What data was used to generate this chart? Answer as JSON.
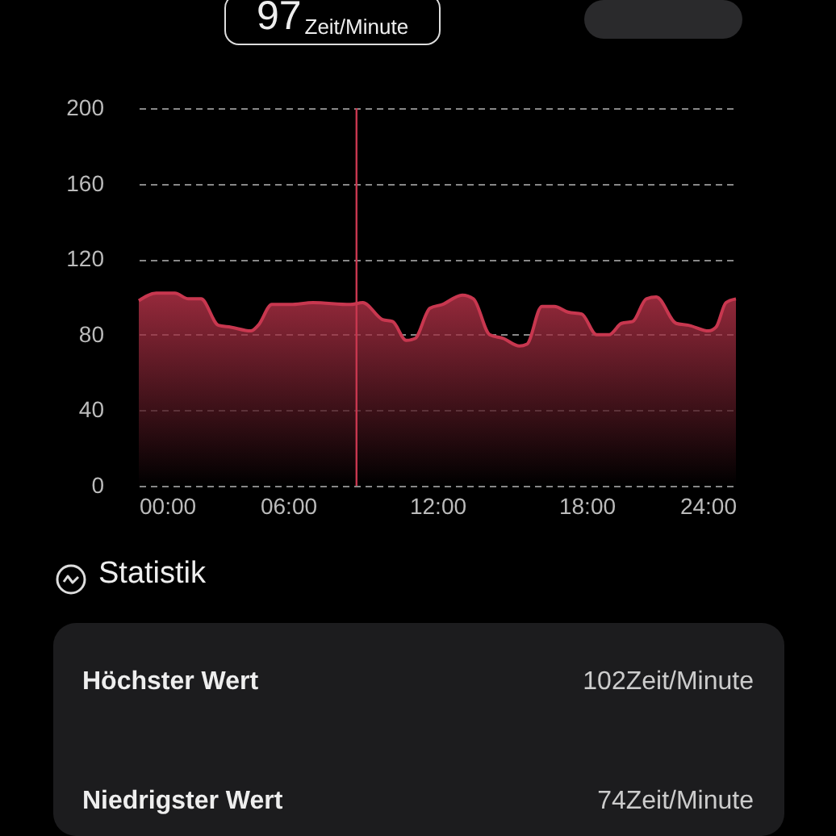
{
  "chart_data": {
    "type": "area",
    "x": [
      0,
      0.7,
      1.45,
      2,
      2.5,
      3.2,
      3.7,
      4.5,
      4.8,
      5.35,
      6.1,
      7,
      8.5,
      9,
      9.8,
      10.2,
      10.75,
      11.1,
      11.7,
      12.2,
      13,
      13.45,
      14.1,
      14.65,
      15.3,
      15.6,
      16.2,
      16.7,
      17.25,
      17.8,
      18.4,
      18.9,
      19.4,
      19.85,
      20.4,
      20.8,
      21.6,
      22.1,
      22.9,
      23.2,
      23.6,
      24
    ],
    "series": [
      {
        "color": "#c8374f",
        "values": [
          98,
          102,
          102,
          99,
          99,
          85,
          84,
          82,
          85,
          96,
          96,
          97,
          96,
          97,
          88,
          87,
          77,
          78,
          94,
          96,
          101,
          99,
          80,
          78,
          74,
          75,
          95,
          95,
          92,
          91,
          80,
          80,
          86,
          87,
          99,
          100,
          86,
          85,
          82,
          84,
          97,
          99
        ]
      }
    ],
    "xlim": [
      0,
      24
    ],
    "xticks": [
      {
        "value": 0,
        "label": "00:00"
      },
      {
        "value": 6,
        "label": "06:00"
      },
      {
        "value": 12,
        "label": "12:00"
      },
      {
        "value": 18,
        "label": "18:00"
      },
      {
        "value": 24,
        "label": "24:00"
      }
    ],
    "ylim": [
      0,
      200
    ],
    "yticks": [
      0,
      40,
      80,
      120,
      160,
      200
    ],
    "grid": "y",
    "ref_lines": [
      {
        "axis": "x",
        "value": 8.75,
        "color": "#c8374f"
      }
    ],
    "annotations": [
      "97Zeit/Minute",
      "Statistik",
      "Höchster Wert",
      "102Zeit/Minute",
      "Niedrigster Wert",
      "74Zeit/Minute"
    ]
  }
}
